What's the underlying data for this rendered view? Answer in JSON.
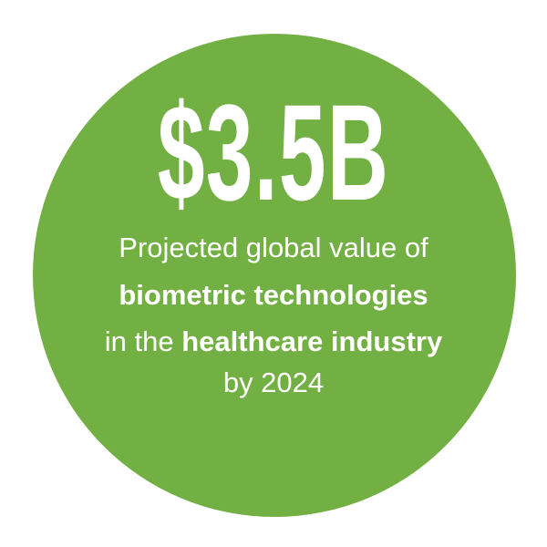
{
  "headline": "$3.5B",
  "description": {
    "line1": "Projected global value of",
    "line2_bold": "biometric technologies",
    "line3_normal": "in the ",
    "line3_bold": "healthcare industry",
    "line4": "by 2024"
  },
  "colors": {
    "circle": "#73b044",
    "text": "#ffffff",
    "background": "#ffffff"
  }
}
